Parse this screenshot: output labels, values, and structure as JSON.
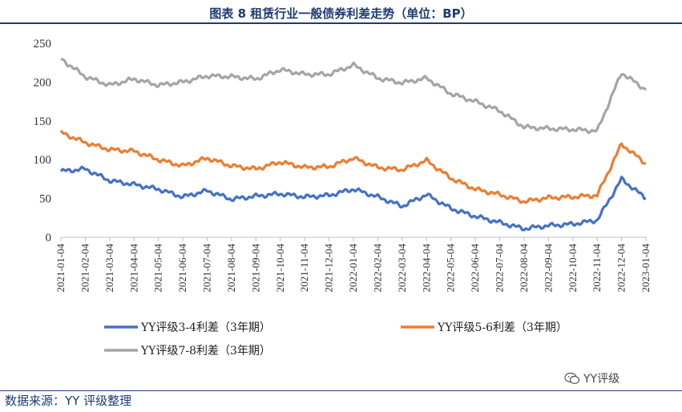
{
  "title": "图表 8 租赁行业一般债券利差走势（单位：BP）",
  "source": "数据来源：YY 评级整理",
  "watermark": "YY评级",
  "chart_data": {
    "type": "line",
    "title": "图表 8 租赁行业一般债券利差走势（单位：BP）",
    "xlabel": "",
    "ylabel": "",
    "ylim": [
      0,
      250
    ],
    "yticks": [
      0,
      50,
      100,
      150,
      200,
      250
    ],
    "grid": false,
    "legend": "bottom",
    "x": [
      "2021-01-04",
      "2021-02-04",
      "2021-03-04",
      "2021-04-04",
      "2021-05-04",
      "2021-06-04",
      "2021-07-04",
      "2021-08-04",
      "2021-09-04",
      "2021-10-04",
      "2021-11-04",
      "2021-12-04",
      "2022-01-04",
      "2022-02-04",
      "2022-03-04",
      "2022-04-04",
      "2022-05-04",
      "2022-06-04",
      "2022-07-04",
      "2022-08-04",
      "2022-09-04",
      "2022-10-04",
      "2022-11-04",
      "2022-12-04",
      "2023-01-04"
    ],
    "xticks": [
      "2021-01-04",
      "2021-02-04",
      "2021-03-04",
      "2021-04-04",
      "2021-05-04",
      "2021-06-04",
      "2021-07-04",
      "2021-08-04",
      "2021-09-04",
      "2021-10-04",
      "2021-11-04",
      "2021-12-04",
      "2022-01-04",
      "2022-02-04",
      "2022-03-04",
      "2022-04-04",
      "2022-05-04",
      "2022-06-04",
      "2022-07-04",
      "2022-08-04",
      "2022-09-04",
      "2022-10-04",
      "2022-11-04",
      "2022-12-04",
      "2023-01-04"
    ],
    "series": [
      {
        "name": "YY评级3-4利差（3年期）",
        "color": "#4472c4",
        "values": [
          85,
          88,
          73,
          68,
          62,
          52,
          60,
          49,
          53,
          56,
          52,
          54,
          62,
          52,
          40,
          55,
          37,
          27,
          19,
          11,
          15,
          17,
          22,
          75,
          50
        ]
      },
      {
        "name": "YY评级5-6利差（3年期）",
        "color": "#ed7d31",
        "values": [
          135,
          122,
          113,
          111,
          100,
          92,
          102,
          92,
          88,
          97,
          90,
          91,
          102,
          90,
          87,
          99,
          76,
          62,
          55,
          46,
          51,
          52,
          54,
          120,
          95
        ]
      },
      {
        "name": "YY评级7-8利差（3年期）",
        "color": "#a5a5a5",
        "values": [
          230,
          207,
          196,
          204,
          196,
          200,
          208,
          207,
          204,
          216,
          210,
          210,
          222,
          205,
          199,
          205,
          185,
          175,
          163,
          142,
          140,
          139,
          137,
          212,
          190
        ]
      }
    ]
  }
}
